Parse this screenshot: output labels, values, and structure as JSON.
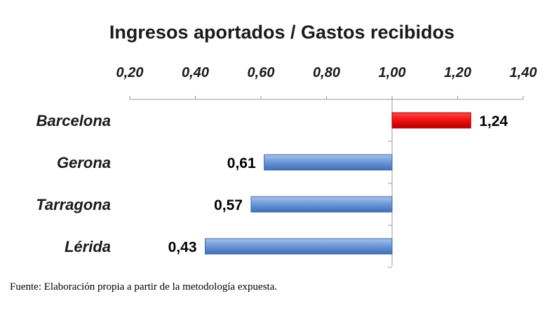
{
  "chart_data": {
    "type": "bar",
    "orientation": "horizontal",
    "title": "Ingresos aportados / Gastos recibidos",
    "categories": [
      "Barcelona",
      "Gerona",
      "Tarragona",
      "Lérida"
    ],
    "values": [
      1.24,
      0.61,
      0.57,
      0.43
    ],
    "value_labels": [
      "1,24",
      "0,61",
      "0,57",
      "0,43"
    ],
    "baseline": 1.0,
    "xlim": [
      0.2,
      1.4
    ],
    "x_ticks": [
      0.2,
      0.4,
      0.6,
      0.8,
      1.0,
      1.2,
      1.4
    ],
    "x_tick_labels": [
      "0,20",
      "0,40",
      "0,60",
      "0,80",
      "1,00",
      "1,20",
      "1,40"
    ],
    "axis_position": "top",
    "grid": false,
    "colors": {
      "above": "#e8151b",
      "below": "#5b8bd0"
    }
  },
  "source_note": "Fuente: Elaboración propia a partir de la metodología expuesta."
}
